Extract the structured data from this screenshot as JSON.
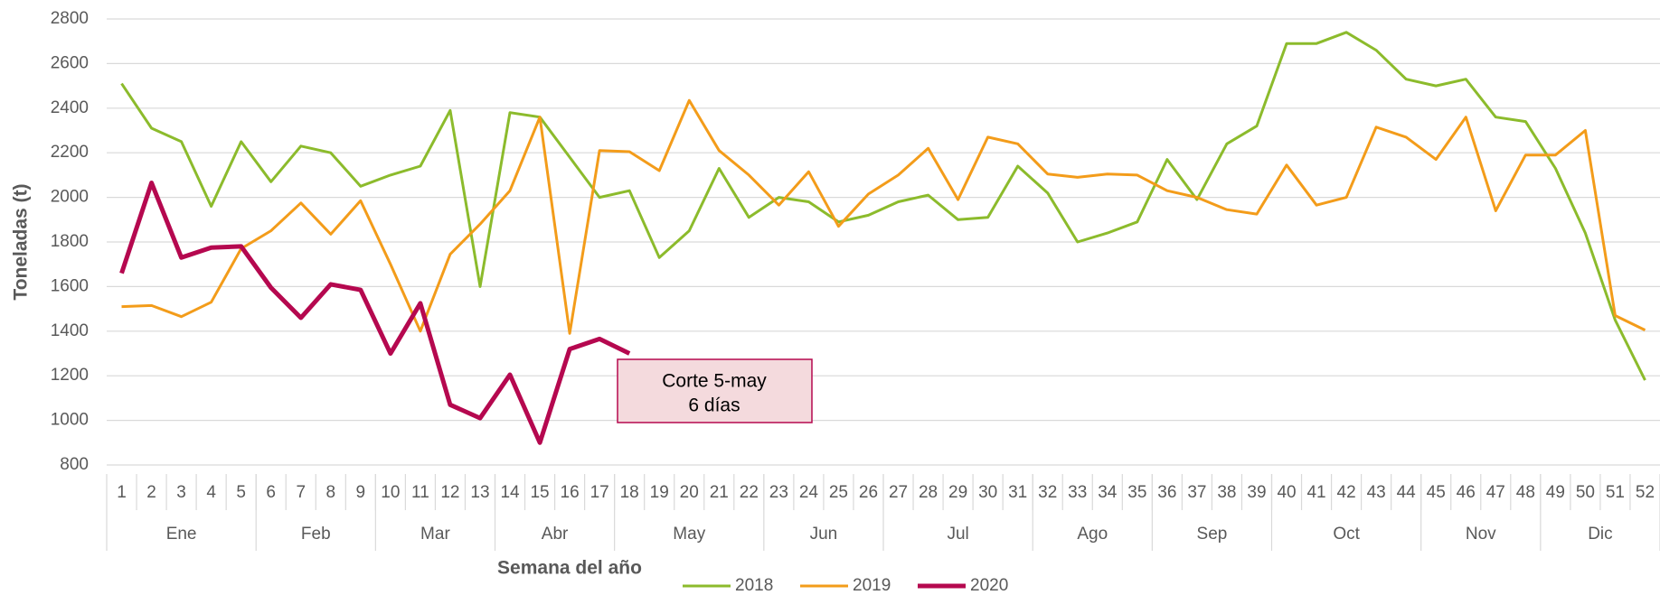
{
  "chart_data": {
    "type": "line",
    "x_label": "Semana del año",
    "y_label": "Toneladas (t)",
    "categories": [
      "1",
      "2",
      "3",
      "4",
      "5",
      "6",
      "7",
      "8",
      "9",
      "10",
      "11",
      "12",
      "13",
      "14",
      "15",
      "16",
      "17",
      "18",
      "19",
      "20",
      "21",
      "22",
      "23",
      "24",
      "25",
      "26",
      "27",
      "28",
      "29",
      "30",
      "31",
      "32",
      "33",
      "34",
      "35",
      "36",
      "37",
      "38",
      "39",
      "40",
      "41",
      "42",
      "43",
      "44",
      "45",
      "46",
      "47",
      "48",
      "49",
      "50",
      "51",
      "52"
    ],
    "month_groups": [
      {
        "label": "Ene",
        "count": 5
      },
      {
        "label": "Feb",
        "count": 4
      },
      {
        "label": "Mar",
        "count": 4
      },
      {
        "label": "Abr",
        "count": 4
      },
      {
        "label": "May",
        "count": 5
      },
      {
        "label": "Jun",
        "count": 4
      },
      {
        "label": "Jul",
        "count": 5
      },
      {
        "label": "Ago",
        "count": 4
      },
      {
        "label": "Sep",
        "count": 4
      },
      {
        "label": "Oct",
        "count": 5
      },
      {
        "label": "Nov",
        "count": 4
      },
      {
        "label": "Dic",
        "count": 4
      }
    ],
    "series": [
      {
        "name": "2018",
        "color": "#8cbb2c",
        "values": [
          2510,
          2310,
          2250,
          1960,
          2250,
          2070,
          2230,
          2200,
          2050,
          2100,
          2140,
          2390,
          1600,
          2380,
          2360,
          2180,
          2000,
          2030,
          1730,
          1850,
          2130,
          1910,
          2000,
          1980,
          1890,
          1920,
          1980,
          2010,
          1900,
          1910,
          2140,
          2020,
          1800,
          1840,
          1890,
          2170,
          1990,
          2240,
          2320,
          2690,
          2690,
          2740,
          2660,
          2530,
          2500,
          2530,
          2360,
          2340,
          2130,
          1840,
          1450,
          1180
        ]
      },
      {
        "name": "2019",
        "color": "#f39c1a",
        "values": [
          1510,
          1515,
          1465,
          1530,
          1770,
          1850,
          1975,
          1835,
          1985,
          1700,
          1400,
          1745,
          1880,
          2030,
          2360,
          1390,
          2210,
          2205,
          2120,
          2435,
          2210,
          2100,
          1965,
          2115,
          1870,
          2015,
          2100,
          2220,
          1990,
          2270,
          2240,
          2105,
          2090,
          2105,
          2100,
          2030,
          2000,
          1945,
          1925,
          2145,
          1965,
          2000,
          2315,
          2270,
          2170,
          2360,
          1940,
          2190,
          2190,
          2300,
          1470,
          1405
        ]
      },
      {
        "name": "2020",
        "color": "#b5084f",
        "values": [
          1660,
          2065,
          1730,
          1775,
          1780,
          1595,
          1460,
          1610,
          1585,
          1300,
          1525,
          1070,
          1010,
          1205,
          900,
          1320,
          1365,
          1300,
          null,
          null,
          null,
          null,
          null,
          null,
          null,
          null,
          null,
          null,
          null,
          null,
          null,
          null,
          null,
          null,
          null,
          null,
          null,
          null,
          null,
          null,
          null,
          null,
          null,
          null,
          null,
          null,
          null,
          null,
          null,
          null,
          null,
          null
        ]
      }
    ],
    "ylim": [
      800,
      2800
    ],
    "yticks": [
      800,
      1000,
      1200,
      1400,
      1600,
      1800,
      2000,
      2200,
      2400,
      2600,
      2800
    ],
    "grid": true,
    "legend": "bottom",
    "annotation": {
      "lines": [
        "Corte 5-may",
        "6 días"
      ],
      "color": "#f4dadd",
      "border": "#b5084f"
    }
  }
}
